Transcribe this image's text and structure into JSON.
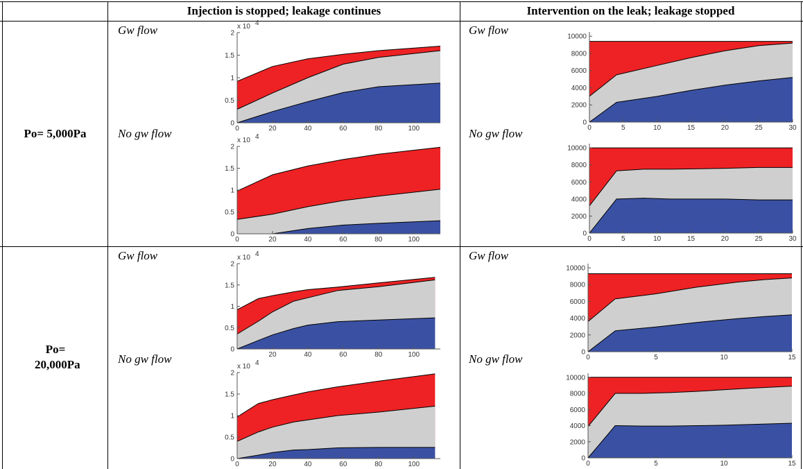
{
  "table": {
    "header": {
      "col1": "Injection is stopped; leakage continues",
      "col2": "Intervention on the leak; leakage stopped"
    },
    "rows": [
      {
        "label": "Po= 5,000Pa",
        "gw_label": "Gw flow",
        "nogw_label": "No gw flow"
      },
      {
        "label": "Po= 20,000Pa",
        "gw_label": "Gw flow",
        "nogw_label": "No gw flow"
      }
    ]
  },
  "colors": {
    "bottom": "#3a51a3",
    "middle": "#cfcfcf",
    "top": "#ee2224",
    "frame": "#000000"
  },
  "chart_data": [
    {
      "id": "r1c1_gw",
      "type": "area",
      "stacked": true,
      "exponent_label": "x 10",
      "exponent_power": "4",
      "x": [
        0,
        20,
        40,
        60,
        80,
        115
      ],
      "xticks": [
        "0",
        "20",
        "40",
        "60",
        "80",
        "100"
      ],
      "xtick_values": [
        0,
        20,
        40,
        60,
        80,
        100
      ],
      "xlim": [
        0,
        115
      ],
      "ylim": [
        0,
        2
      ],
      "yticks": [
        "0",
        "0.5",
        "1",
        "1.5",
        "2"
      ],
      "ytick_values": [
        0,
        0.5,
        1,
        1.5,
        2
      ],
      "series": [
        {
          "values": [
            0,
            0.25,
            0.47,
            0.67,
            0.8,
            0.88
          ]
        },
        {
          "values": [
            0.3,
            0.66,
            1.0,
            1.3,
            1.45,
            1.6
          ]
        },
        {
          "values": [
            0.92,
            1.25,
            1.42,
            1.52,
            1.6,
            1.7
          ]
        }
      ]
    },
    {
      "id": "r1c1_nogw",
      "type": "area",
      "stacked": true,
      "exponent_label": "x 10",
      "exponent_power": "4",
      "x": [
        0,
        20,
        40,
        60,
        80,
        115
      ],
      "xticks": [
        "0",
        "20",
        "40",
        "60",
        "80",
        "100"
      ],
      "xtick_values": [
        0,
        20,
        40,
        60,
        80,
        100
      ],
      "xlim": [
        0,
        115
      ],
      "ylim": [
        0,
        2
      ],
      "yticks": [
        "0",
        "0.5",
        "1",
        "1.5",
        "2"
      ],
      "ytick_values": [
        0,
        0.5,
        1,
        1.5,
        2
      ],
      "series": [
        {
          "values": [
            0,
            0,
            0.12,
            0.2,
            0.24,
            0.3
          ]
        },
        {
          "values": [
            0.33,
            0.45,
            0.62,
            0.76,
            0.86,
            1.02
          ]
        },
        {
          "values": [
            0.98,
            1.35,
            1.55,
            1.7,
            1.82,
            1.98
          ]
        }
      ]
    },
    {
      "id": "r1c2_gw",
      "type": "area",
      "stacked": true,
      "x": [
        0,
        4,
        10,
        15,
        20,
        25,
        30
      ],
      "xticks": [
        "0",
        "5",
        "10",
        "15",
        "20",
        "25",
        "30"
      ],
      "xtick_values": [
        0,
        5,
        10,
        15,
        20,
        25,
        30
      ],
      "xlim": [
        0,
        30
      ],
      "ylim": [
        0,
        10500
      ],
      "yticks": [
        "0",
        "2000",
        "4000",
        "6000",
        "8000",
        "10000"
      ],
      "ytick_values": [
        0,
        2000,
        4000,
        6000,
        8000,
        10000
      ],
      "series": [
        {
          "values": [
            0,
            2300,
            3000,
            3700,
            4300,
            4800,
            5200
          ]
        },
        {
          "values": [
            3000,
            5500,
            6600,
            7500,
            8300,
            8900,
            9200
          ]
        },
        {
          "values": [
            9400,
            9400,
            9400,
            9400,
            9400,
            9400,
            9400
          ]
        }
      ]
    },
    {
      "id": "r1c2_nogw",
      "type": "area",
      "stacked": true,
      "x": [
        0,
        4,
        8,
        12,
        20,
        25,
        30
      ],
      "xticks": [
        "0",
        "5",
        "10",
        "15",
        "20",
        "25",
        "30"
      ],
      "xtick_values": [
        0,
        5,
        10,
        15,
        20,
        25,
        30
      ],
      "xlim": [
        0,
        30
      ],
      "ylim": [
        0,
        10500
      ],
      "yticks": [
        "0",
        "2000",
        "4000",
        "6000",
        "8000",
        "10000"
      ],
      "ytick_values": [
        0,
        2000,
        4000,
        6000,
        8000,
        10000
      ],
      "series": [
        {
          "values": [
            0,
            4000,
            4100,
            4000,
            4000,
            3900,
            3900
          ]
        },
        {
          "values": [
            3200,
            7300,
            7500,
            7500,
            7600,
            7700,
            7700
          ]
        },
        {
          "values": [
            10000,
            10000,
            10000,
            10000,
            10000,
            10000,
            10000
          ]
        }
      ]
    },
    {
      "id": "r2c1_gw",
      "type": "area",
      "stacked": true,
      "exponent_label": "x 10",
      "exponent_power": "4",
      "x": [
        0,
        12,
        20,
        32,
        40,
        57,
        80,
        112
      ],
      "xticks": [
        "20",
        "40",
        "60",
        "80",
        "100"
      ],
      "xtick_values": [
        20,
        40,
        60,
        80,
        100
      ],
      "xlim": [
        0,
        115
      ],
      "ylim": [
        0,
        2
      ],
      "yticks": [
        "0",
        "0.5",
        "1",
        "1.5",
        "2"
      ],
      "ytick_values": [
        0,
        0.5,
        1,
        1.5,
        2
      ],
      "series": [
        {
          "values": [
            0,
            0.2,
            0.33,
            0.48,
            0.56,
            0.64,
            0.68,
            0.73
          ]
        },
        {
          "values": [
            0.35,
            0.65,
            0.87,
            1.12,
            1.2,
            1.37,
            1.46,
            1.62
          ]
        },
        {
          "values": [
            0.92,
            1.18,
            1.25,
            1.34,
            1.39,
            1.45,
            1.55,
            1.68
          ]
        }
      ]
    },
    {
      "id": "r2c1_nogw",
      "type": "area",
      "stacked": true,
      "exponent_label": "x 10",
      "exponent_power": "4",
      "x": [
        0,
        12,
        20,
        32,
        40,
        57,
        80,
        112
      ],
      "xticks": [
        "0",
        "20",
        "40",
        "60",
        "80",
        "100"
      ],
      "xtick_values": [
        0,
        20,
        40,
        60,
        80,
        100
      ],
      "xlim": [
        0,
        115
      ],
      "ylim": [
        0,
        2
      ],
      "yticks": [
        "0",
        "0.5",
        "1",
        "1.5",
        "2"
      ],
      "ytick_values": [
        0,
        0.5,
        1,
        1.5,
        2
      ],
      "series": [
        {
          "values": [
            0,
            0.08,
            0.14,
            0.2,
            0.21,
            0.25,
            0.26,
            0.26
          ]
        },
        {
          "values": [
            0.4,
            0.62,
            0.73,
            0.85,
            0.9,
            1.0,
            1.08,
            1.22
          ]
        },
        {
          "values": [
            0.97,
            1.28,
            1.37,
            1.48,
            1.55,
            1.67,
            1.8,
            1.97
          ]
        }
      ]
    },
    {
      "id": "r2c2_gw",
      "type": "area",
      "stacked": true,
      "x": [
        0,
        2,
        5,
        8,
        11,
        13,
        15
      ],
      "xticks": [
        "0",
        "5",
        "10",
        "15"
      ],
      "xtick_values": [
        0,
        5,
        10,
        15
      ],
      "xlim": [
        0,
        15
      ],
      "ylim": [
        0,
        10500
      ],
      "yticks": [
        "0",
        "2000",
        "4000",
        "6000",
        "8000",
        "10000"
      ],
      "ytick_values": [
        0,
        2000,
        4000,
        6000,
        8000,
        10000
      ],
      "series": [
        {
          "values": [
            0,
            2500,
            2950,
            3500,
            3950,
            4200,
            4400
          ]
        },
        {
          "values": [
            3600,
            6300,
            6900,
            7700,
            8300,
            8600,
            8800
          ]
        },
        {
          "values": [
            9300,
            9300,
            9300,
            9300,
            9300,
            9300,
            9300
          ]
        }
      ]
    },
    {
      "id": "r2c2_nogw",
      "type": "area",
      "stacked": true,
      "x": [
        0,
        2,
        4,
        6,
        8,
        10,
        12,
        15
      ],
      "xticks": [
        "0",
        "5",
        "10",
        "15"
      ],
      "xtick_values": [
        0,
        5,
        10,
        15
      ],
      "xlim": [
        0,
        15
      ],
      "ylim": [
        0,
        10500
      ],
      "yticks": [
        "0",
        "2000",
        "4000",
        "6000",
        "8000",
        "10000"
      ],
      "ytick_values": [
        0,
        2000,
        4000,
        6000,
        8000,
        10000
      ],
      "series": [
        {
          "values": [
            0,
            4000,
            3950,
            3950,
            4000,
            4050,
            4150,
            4300
          ]
        },
        {
          "values": [
            3900,
            8000,
            8000,
            8100,
            8250,
            8450,
            8650,
            8900
          ]
        },
        {
          "values": [
            10000,
            10000,
            10000,
            10000,
            10000,
            10000,
            10000,
            10000
          ]
        }
      ]
    }
  ]
}
